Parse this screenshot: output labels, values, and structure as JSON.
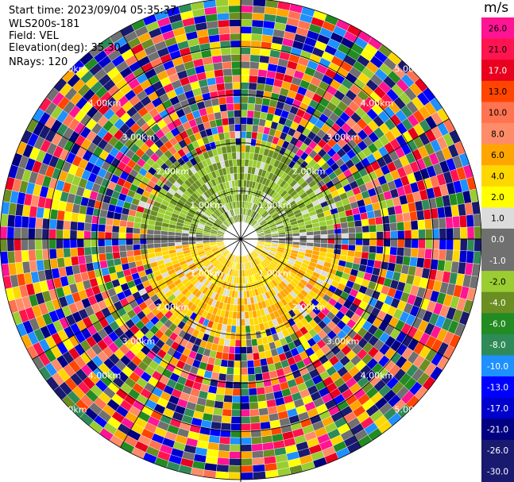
{
  "header": {
    "start_time": "Start time: 2023/09/04 05:35:37",
    "instrument": "WLS200s-181",
    "field": "Field: VEL",
    "elevation": "Elevation(deg): 35.30",
    "nrays": "NRays: 120"
  },
  "chart_data": {
    "type": "heatmap",
    "projection": "polar-ppi",
    "field": "VEL",
    "unit": "m/s",
    "n_rays": 120,
    "elevation_deg": 35.3,
    "max_range_km": 5.0,
    "range_rings_km": [
      1,
      2,
      3,
      4,
      5
    ],
    "ring_labels": [
      "1.00km",
      "2.00km",
      "3.00km",
      "4.00km",
      "5.00km"
    ],
    "colorbar": {
      "ticks": [
        26.0,
        21.0,
        17.0,
        13.0,
        10.0,
        8.0,
        6.0,
        4.0,
        2.0,
        1.0,
        0.0,
        -1.0,
        -2.0,
        -4.0,
        -6.0,
        -8.0,
        -10.0,
        -13.0,
        -17.0,
        -21.0,
        -26.0,
        -30.0
      ],
      "tick_labels": [
        "26.0",
        "21.0",
        "17.0",
        "13.0",
        "10.0",
        "8.0",
        "6.0",
        "4.0",
        "2.0",
        "1.0",
        "0.0",
        "-1.0",
        "-2.0",
        "-4.0",
        "-6.0",
        "-8.0",
        "-10.0",
        "-13.0",
        "-17.0",
        "-21.0",
        "-26.0",
        "-30.0"
      ],
      "colors": [
        "#ff1493",
        "#ff1450",
        "#e8001e",
        "#ff4500",
        "#ff7350",
        "#ff8c69",
        "#ffa500",
        "#ffd700",
        "#ffff00",
        "#dcdcdc",
        "#707070",
        "#707070",
        "#9acd32",
        "#6b8e23",
        "#228b22",
        "#2e8b57",
        "#1e90ff",
        "#0000ff",
        "#0000cd",
        "#000080",
        "#191970",
        "#191970"
      ]
    },
    "clean_region": {
      "range_km": [
        0.0,
        2.2
      ],
      "north_half_velocity_ms": -3.0,
      "south_half_velocity_ms": 4.0,
      "east_west_velocity_ms": 0.0
    }
  }
}
